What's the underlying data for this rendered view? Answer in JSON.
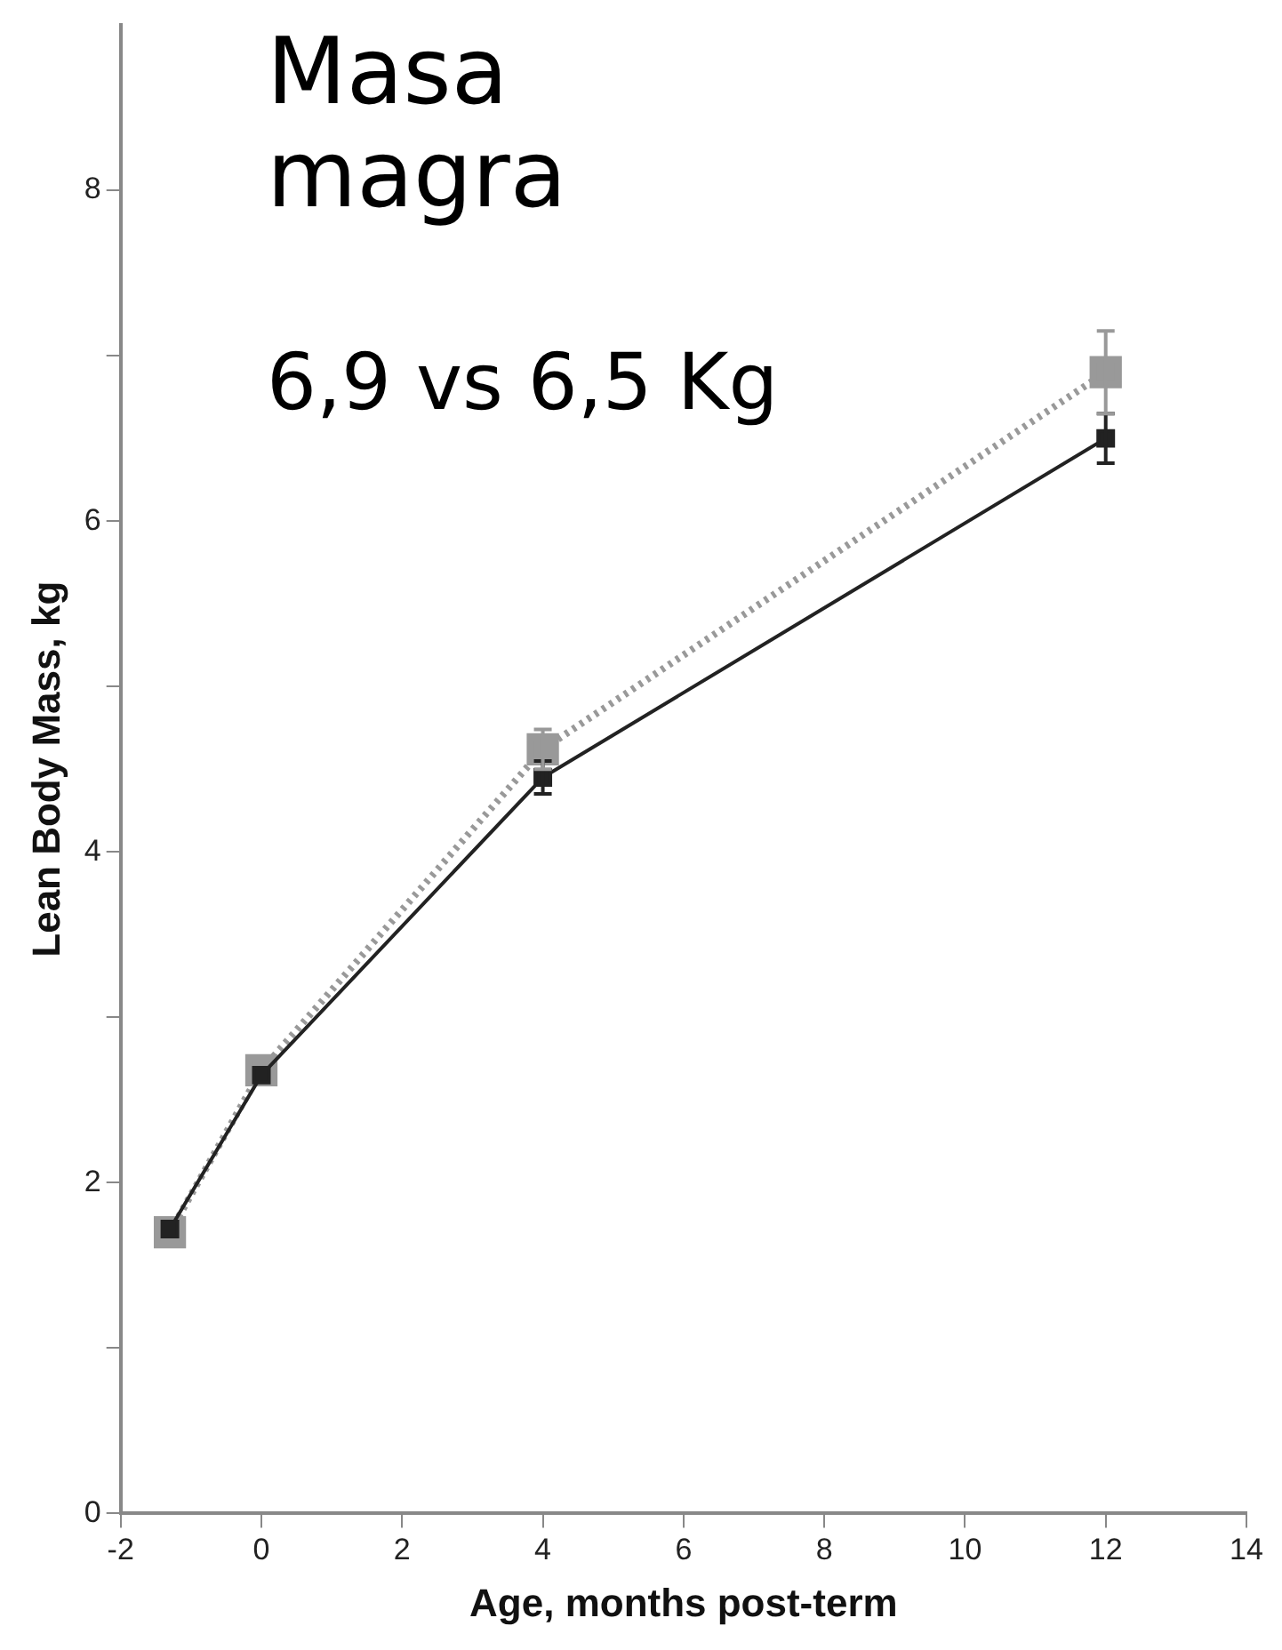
{
  "chart_data": {
    "type": "line",
    "title": "Masa magra",
    "subtitle": "6,9 vs 6,5 Kg",
    "xlabel": "Age, months post-term",
    "ylabel": "Lean Body Mass, kg",
    "x": [
      -1.3,
      0,
      4,
      12
    ],
    "series": [
      {
        "color": "#222222",
        "values": [
          1.72,
          2.65,
          4.45,
          6.5
        ],
        "errors": [
          null,
          null,
          0.1,
          0.15
        ],
        "line_style": "solid"
      },
      {
        "color": "#999999",
        "values": [
          1.7,
          2.68,
          4.62,
          6.9
        ],
        "errors": [
          null,
          null,
          0.12,
          0.25
        ],
        "line_style": "dotted"
      }
    ],
    "xlim": [
      -2,
      14
    ],
    "xticks": [
      -2,
      0,
      2,
      4,
      6,
      8,
      10,
      12,
      14
    ],
    "ylim": [
      0,
      9
    ],
    "yticks": [
      0,
      {
        "value": 1,
        "label": null
      },
      2,
      {
        "value": 3,
        "label": null
      },
      4,
      {
        "value": 5,
        "label": null
      },
      6,
      {
        "value": 7,
        "label": null
      },
      8
    ],
    "grid": false,
    "legend": false,
    "marker": "square"
  }
}
